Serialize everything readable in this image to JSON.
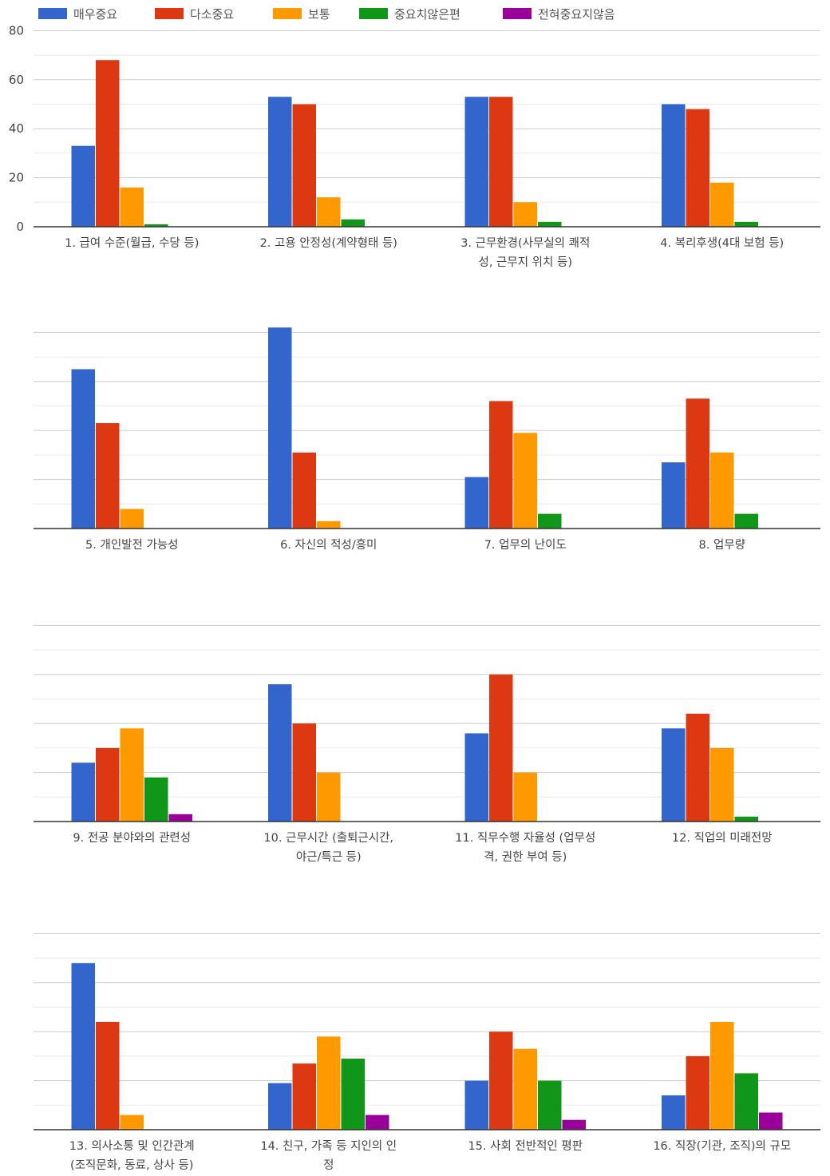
{
  "chart_data": {
    "type": "bar",
    "title": "",
    "xlabel": "",
    "ylabel": "",
    "ylim": [
      0,
      80
    ],
    "y_ticks": [
      0,
      20,
      40,
      60,
      80
    ],
    "y_tick_labels": [
      "0",
      "20",
      "40",
      "60",
      "80"
    ],
    "grid": true,
    "legend_position": "top-left",
    "series": [
      {
        "name": "매우중요",
        "color": "#3366cc",
        "values": [
          33,
          53,
          53,
          50,
          65,
          82,
          21,
          27,
          24,
          56,
          36,
          38,
          68,
          19,
          20,
          14
        ]
      },
      {
        "name": "다소중요",
        "color": "#dc3912",
        "values": [
          68,
          50,
          53,
          48,
          43,
          31,
          52,
          53,
          30,
          40,
          60,
          44,
          44,
          27,
          40,
          30
        ]
      },
      {
        "name": "보통",
        "color": "#ff9900",
        "values": [
          16,
          12,
          10,
          18,
          8,
          3,
          39,
          31,
          38,
          20,
          20,
          30,
          6,
          38,
          33,
          44
        ]
      },
      {
        "name": "중요치않은편",
        "color": "#109618",
        "values": [
          1,
          3,
          2,
          2,
          0,
          0,
          6,
          6,
          18,
          0,
          0,
          2,
          0,
          29,
          20,
          23
        ]
      },
      {
        "name": "전혀중요지않음",
        "color": "#990099",
        "values": [
          0,
          0,
          0,
          0,
          0,
          0,
          0,
          0,
          3,
          0,
          0,
          0,
          0,
          6,
          4,
          7
        ]
      }
    ],
    "categories": [
      [
        "1. 급여 수준(월급, 수당 등)"
      ],
      [
        "2. 고용 안정성(계약형태 등)"
      ],
      [
        "3. 근무환경(사무실의 쾌적",
        "성, 근무지 위치 등)"
      ],
      [
        "4. 복리후생(4대 보험 등)"
      ],
      [
        "5. 개인발전 가능성"
      ],
      [
        "6. 자신의 적성/흥미"
      ],
      [
        "7. 업무의 난이도"
      ],
      [
        "8. 업무량"
      ],
      [
        "9. 전공 분야와의 관련성"
      ],
      [
        "10. 근무시간 (출퇴근시간,",
        "야근/특근 등)"
      ],
      [
        "11. 직무수행 자율성 (업무성",
        "격, 권한 부여 등)"
      ],
      [
        "12. 직업의 미래전망"
      ],
      [
        "13. 의사소통 및 인간관계",
        "(조직문화, 동료, 상사 등)"
      ],
      [
        "14. 친구, 가족 등 지인의 인",
        "정"
      ],
      [
        "15. 사회 전반적인 평판"
      ],
      [
        "16. 직장(기관, 조직)의 규모"
      ]
    ]
  }
}
